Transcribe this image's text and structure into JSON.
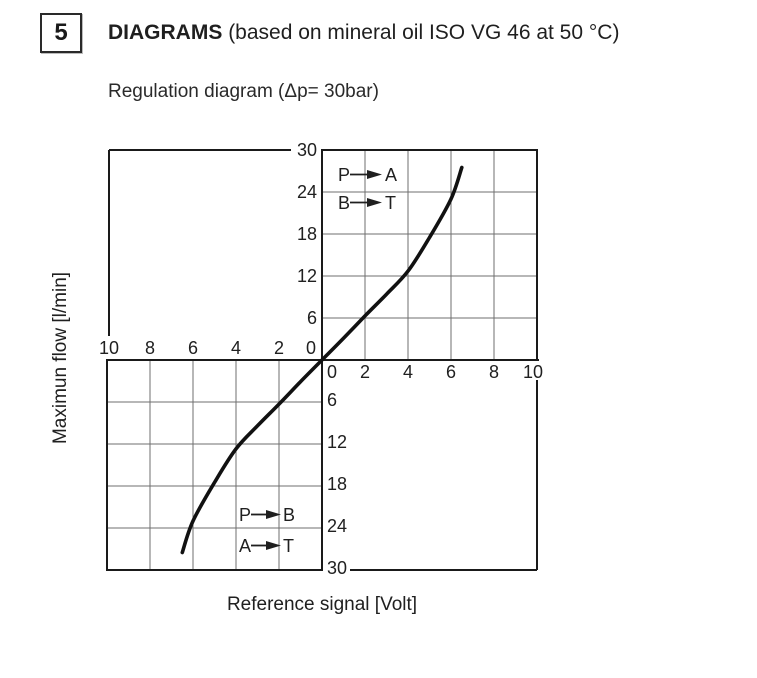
{
  "header": {
    "section_number": "5",
    "title": "DIAGRAMS",
    "title_suffix": "(based on mineral oil ISO VG 46 at 50 °C)",
    "subtitle": "Regulation diagram (Δp= 30bar)"
  },
  "colors": {
    "ink": "#1f1f1f",
    "grid_line": "#6f6f6f",
    "border_line": "#1a1a1a",
    "curve": "#111111",
    "background": "#ffffff"
  },
  "chart_data": {
    "type": "line",
    "title": "Regulation diagram (Δp= 30bar)",
    "xlabel": "Reference signal [Volt]",
    "ylabel": "Maximun flow [l/min]",
    "xlim": [
      -10,
      10
    ],
    "ylim": [
      -30,
      30
    ],
    "x_tick_interval": 2,
    "y_tick_interval": 6,
    "grid": "5x5 grid drawn only in upper-right and lower-left quadrants; other two quadrants are empty boxes",
    "legend": "none",
    "axis_tick_labels": {
      "upper_y": [
        "30",
        "24",
        "18",
        "12",
        "6"
      ],
      "origin": "0",
      "upper_x": [
        "10",
        "8",
        "6",
        "4",
        "2"
      ],
      "lower_x": [
        "0",
        "2",
        "4",
        "6",
        "8",
        "10"
      ],
      "lower_y": [
        "6",
        "12",
        "18",
        "24",
        "30"
      ]
    },
    "series": [
      {
        "name": "regulation-curve",
        "points": [
          [
            -6.5,
            -27.5
          ],
          [
            -6,
            -23
          ],
          [
            -5,
            -17.5
          ],
          [
            -4,
            -12.7
          ],
          [
            -3,
            -9.4
          ],
          [
            -2,
            -6.3
          ],
          [
            -1,
            -3.1
          ],
          [
            0,
            0
          ],
          [
            1,
            3.1
          ],
          [
            2,
            6.3
          ],
          [
            3,
            9.4
          ],
          [
            4,
            12.7
          ],
          [
            5,
            17.5
          ],
          [
            6,
            23
          ],
          [
            6.5,
            27.5
          ]
        ]
      }
    ],
    "quadrant_labels": {
      "upper_right": [
        {
          "from": "P",
          "to": "A"
        },
        {
          "from": "B",
          "to": "T"
        }
      ],
      "lower_left": [
        {
          "from": "P",
          "to": "B"
        },
        {
          "from": "A",
          "to": "T"
        }
      ]
    }
  }
}
